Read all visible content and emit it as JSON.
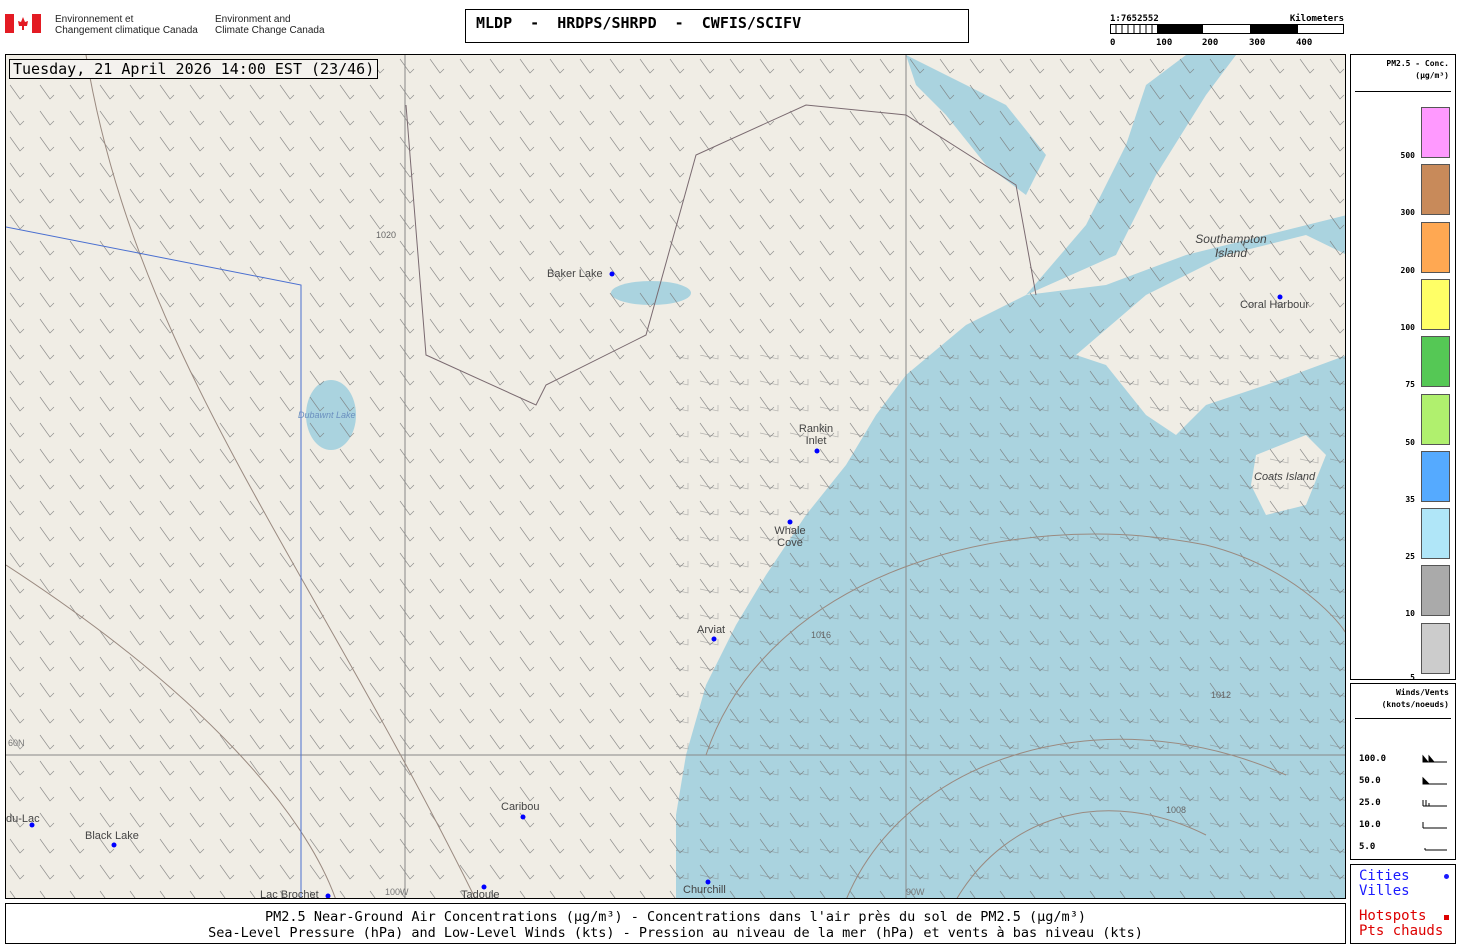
{
  "header": {
    "gov_fr": [
      "Environnement et",
      "Changement climatique Canada"
    ],
    "gov_en": [
      "Environment and",
      "Climate Change Canada"
    ],
    "title": "MLDP  -  HRDPS/SHRPD  -  CWFIS/SCIFV"
  },
  "scale": {
    "ratio": "1:7652552",
    "unit": "Kilometers",
    "ticks": [
      "0",
      "100",
      "200",
      "300",
      "400"
    ]
  },
  "map": {
    "datetime": "Tuesday, 21 April 2026 14:00 EST (23/46)",
    "cities": [
      "Baker Lake",
      "Rankin Inlet",
      "Whale Cove",
      "Arviat",
      "Churchill",
      "Caribou",
      "Tadoule",
      "Lac Brochet",
      "Black Lake",
      "Coral Harbour",
      "du-Lac"
    ],
    "places": [
      "Southampton Island",
      "Coats Island",
      "Dubawnt Lake"
    ],
    "grid_labels": [
      "60N",
      "100W",
      "90W"
    ],
    "isobars": [
      "1020",
      "1016",
      "1012",
      "1008"
    ],
    "colors": {
      "land": "#f0ede5",
      "water": "#aad3df",
      "city": "#0000ff"
    }
  },
  "pm_legend": {
    "title": "PM2.5 - Conc.",
    "unit": "(µg/m³)",
    "levels": [
      {
        "label": "500",
        "color": "#ff99ff"
      },
      {
        "label": "300",
        "color": "#c88a5a"
      },
      {
        "label": "200",
        "color": "#ffa852"
      },
      {
        "label": "100",
        "color": "#ffff66"
      },
      {
        "label": "75",
        "color": "#55c855"
      },
      {
        "label": "50",
        "color": "#b0f06e"
      },
      {
        "label": "35",
        "color": "#55aaff"
      },
      {
        "label": "25",
        "color": "#b0e6f8"
      },
      {
        "label": "10",
        "color": "#aaaaaa"
      },
      {
        "label": "5",
        "color": "#cccccc"
      }
    ]
  },
  "wind_legend": {
    "title": "Winds/Vents",
    "unit": "(knots/noeuds)",
    "speeds": [
      "100.0",
      "50.0",
      "25.0",
      "10.0",
      "5.0"
    ]
  },
  "symbols": {
    "cities": "Cities",
    "villes": "Villes",
    "hotspots": "Hotspots",
    "pts": "Pts chauds"
  },
  "caption": {
    "line1": "PM2.5 Near-Ground Air Concentrations (µg/m³) - Concentrations dans l'air près du sol de PM2.5 (µg/m³)",
    "line2": "Sea-Level Pressure (hPa) and Low-Level Winds (kts) - Pression au niveau de la mer (hPa) et vents à bas niveau (kts)"
  }
}
